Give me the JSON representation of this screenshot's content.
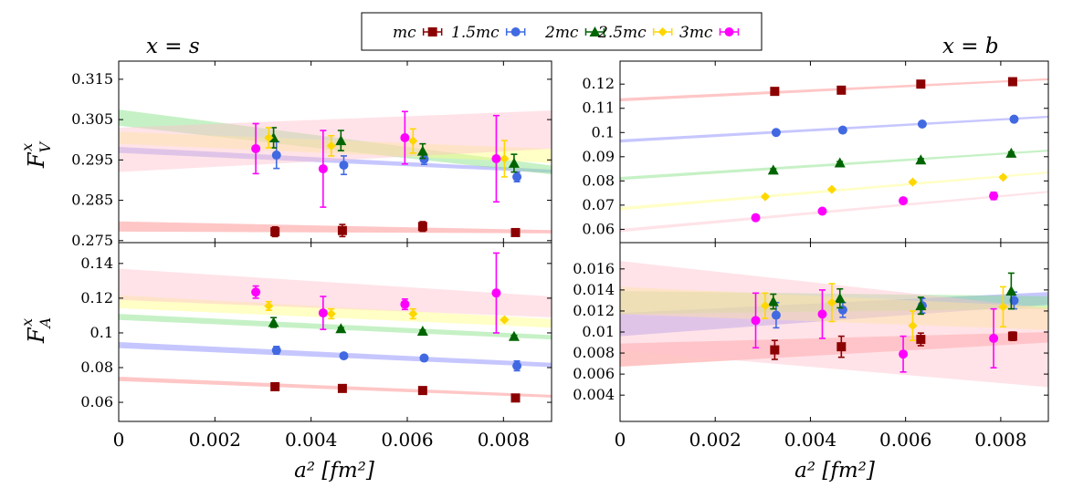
{
  "figure": {
    "x_axis_label": "a² [fm²]",
    "legend": {
      "items": [
        {
          "label": "m_c",
          "display": "mc",
          "color": "#8b0000",
          "marker": "square"
        },
        {
          "label": "1.5m_c",
          "display": "1.5mc",
          "color": "#4169e1",
          "marker": "circle"
        },
        {
          "label": "2m_c",
          "display": "2mc",
          "color": "#006400",
          "marker": "triangle"
        },
        {
          "label": "2.5m_c",
          "display": "2.5mc",
          "color": "#ffd700",
          "marker": "diamond"
        },
        {
          "label": "3m_c",
          "display": "3mc",
          "color": "#ff00ff",
          "marker": "circle"
        }
      ]
    },
    "column_titles": {
      "left": "x = s",
      "right": "x = b"
    },
    "row_labels": {
      "top": "F_V^x",
      "bottom": "F_A^x"
    }
  },
  "chart_data": [
    {
      "id": "FV_s",
      "type": "scatter",
      "title": "x = s",
      "ylabel": "F_V^x",
      "xlim": [
        0,
        0.009
      ],
      "ylim": [
        0.2745,
        0.3195
      ],
      "x_ticks": [],
      "x_tick_labels": [],
      "y_ticks": [
        0.275,
        0.285,
        0.295,
        0.305,
        0.315
      ],
      "y_tick_labels": [
        "0.275",
        "0.285",
        "0.295",
        "0.305",
        "0.315"
      ],
      "series": [
        {
          "name": "m_c",
          "x": [
            0.00325,
            0.00465,
            0.00632,
            0.00825
          ],
          "y": [
            0.2772,
            0.2775,
            0.2785,
            0.277
          ],
          "err": [
            0.0012,
            0.0015,
            0.0012,
            0.0004
          ],
          "band": {
            "y0": 0.2785,
            "y1": 0.2772,
            "w0": 0.0025,
            "w1": 0.0008
          }
        },
        {
          "name": "1.5m_c",
          "x": [
            0.00328,
            0.00468,
            0.00635,
            0.00828
          ],
          "y": [
            0.2962,
            0.2937,
            0.2952,
            0.2908
          ],
          "err": [
            0.0033,
            0.0023,
            0.0013,
            0.0012
          ],
          "band": {
            "y0": 0.2975,
            "y1": 0.2922,
            "w0": 0.0015,
            "w1": 0.0008
          }
        },
        {
          "name": "2m_c",
          "x": [
            0.00322,
            0.00462,
            0.00632,
            0.00822
          ],
          "y": [
            0.3005,
            0.2998,
            0.2972,
            0.2942
          ],
          "err": [
            0.0025,
            0.0025,
            0.0018,
            0.0022
          ],
          "band": {
            "y0": 0.3055,
            "y1": 0.2925,
            "w0": 0.004,
            "w1": 0.0022
          }
        },
        {
          "name": "2.5m_c",
          "x": [
            0.00312,
            0.00442,
            0.00612,
            0.00802
          ],
          "y": [
            0.3005,
            0.2985,
            0.2997,
            0.2953
          ],
          "err": [
            0.0025,
            0.0025,
            0.003,
            0.0045
          ],
          "band": {
            "y0": 0.3005,
            "y1": 0.296,
            "w0": 0.003,
            "w1": 0.0035
          }
        },
        {
          "name": "3m_c",
          "x": [
            0.00285,
            0.00425,
            0.00595,
            0.00785
          ],
          "y": [
            0.2978,
            0.2928,
            0.3005,
            0.2953
          ],
          "err": [
            0.0062,
            0.0095,
            0.0065,
            0.0107
          ],
          "band": {
            "y0": 0.2975,
            "y1": 0.3025,
            "w0": 0.011,
            "w1": 0.0095
          }
        }
      ]
    },
    {
      "id": "FV_b",
      "type": "scatter",
      "title": "x = b",
      "ylabel": "",
      "xlim": [
        0,
        0.009
      ],
      "ylim": [
        0.0545,
        0.1295
      ],
      "x_ticks": [],
      "x_tick_labels": [],
      "y_ticks": [
        0.06,
        0.07,
        0.08,
        0.09,
        0.1,
        0.11,
        0.12
      ],
      "y_tick_labels": [
        "0.06",
        "0.07",
        "0.08",
        "0.09",
        "0.1",
        "0.11",
        "0.12"
      ],
      "series": [
        {
          "name": "m_c",
          "x": [
            0.00325,
            0.00465,
            0.00632,
            0.00825
          ],
          "y": [
            0.117,
            0.1175,
            0.12,
            0.121
          ],
          "err": [
            0.0005,
            0.0005,
            0.0005,
            0.0005
          ],
          "band": {
            "y0": 0.1135,
            "y1": 0.122,
            "w0": 0.0013,
            "w1": 0.0008
          }
        },
        {
          "name": "1.5m_c",
          "x": [
            0.00328,
            0.00468,
            0.00635,
            0.00828
          ],
          "y": [
            0.1,
            0.101,
            0.1035,
            0.1055
          ],
          "err": [
            0.0005,
            0.0005,
            0.0005,
            0.0005
          ],
          "band": {
            "y0": 0.0965,
            "y1": 0.1065,
            "w0": 0.0013,
            "w1": 0.0008
          }
        },
        {
          "name": "2m_c",
          "x": [
            0.00322,
            0.00462,
            0.00632,
            0.00822
          ],
          "y": [
            0.0845,
            0.0875,
            0.0887,
            0.0915
          ],
          "err": [
            0.0005,
            0.0005,
            0.0005,
            0.0005
          ],
          "band": {
            "y0": 0.081,
            "y1": 0.0925,
            "w0": 0.0013,
            "w1": 0.0008
          }
        },
        {
          "name": "2.5m_c",
          "x": [
            0.00305,
            0.00445,
            0.00615,
            0.00805
          ],
          "y": [
            0.0735,
            0.0765,
            0.0795,
            0.0815
          ],
          "err": [
            0.0005,
            0.0005,
            0.0005,
            0.0005
          ],
          "band": {
            "y0": 0.0685,
            "y1": 0.0835,
            "w0": 0.0013,
            "w1": 0.0008
          }
        },
        {
          "name": "3m_c",
          "x": [
            0.00285,
            0.00425,
            0.00595,
            0.00785
          ],
          "y": [
            0.0648,
            0.0675,
            0.0718,
            0.0738
          ],
          "err": [
            0.0005,
            0.0005,
            0.0005,
            0.0015
          ],
          "band": {
            "y0": 0.0595,
            "y1": 0.0755,
            "w0": 0.0013,
            "w1": 0.0008
          }
        }
      ]
    },
    {
      "id": "FA_s",
      "type": "scatter",
      "title": "",
      "ylabel": "F_A^x",
      "xlim": [
        0,
        0.009
      ],
      "ylim": [
        0.049,
        0.152
      ],
      "x_ticks": [
        0,
        0.002,
        0.004,
        0.006,
        0.008
      ],
      "x_tick_labels": [
        "0",
        "0.002",
        "0.004",
        "0.006",
        "0.008"
      ],
      "y_ticks": [
        0.06,
        0.08,
        0.1,
        0.12,
        0.14
      ],
      "y_tick_labels": [
        "0.06",
        "0.08",
        "0.1",
        "0.12",
        "0.14"
      ],
      "series": [
        {
          "name": "m_c",
          "x": [
            0.00325,
            0.00465,
            0.00632,
            0.00825
          ],
          "y": [
            0.069,
            0.068,
            0.0668,
            0.0625
          ],
          "err": [
            0.0006,
            0.0006,
            0.0006,
            0.0006
          ],
          "band": {
            "y0": 0.0735,
            "y1": 0.0635,
            "w0": 0.0025,
            "w1": 0.0016
          }
        },
        {
          "name": "1.5m_c",
          "x": [
            0.00328,
            0.00468,
            0.00635,
            0.00828
          ],
          "y": [
            0.09,
            0.0868,
            0.0855,
            0.081
          ],
          "err": [
            0.0022,
            0.0006,
            0.0006,
            0.0028
          ],
          "band": {
            "y0": 0.093,
            "y1": 0.0815,
            "w0": 0.0035,
            "w1": 0.0025
          }
        },
        {
          "name": "2m_c",
          "x": [
            0.00322,
            0.00462,
            0.00632,
            0.00822
          ],
          "y": [
            0.106,
            0.1025,
            0.101,
            0.098
          ],
          "err": [
            0.0028,
            0.0006,
            0.0006,
            0.0006
          ],
          "band": {
            "y0": 0.1092,
            "y1": 0.0975,
            "w0": 0.0035,
            "w1": 0.0025
          }
        },
        {
          "name": "2.5m_c",
          "x": [
            0.00312,
            0.00442,
            0.00612,
            0.00802
          ],
          "y": [
            0.1155,
            0.111,
            0.111,
            0.1075
          ],
          "err": [
            0.0025,
            0.0028,
            0.0028,
            0.0006
          ],
          "band": {
            "y0": 0.118,
            "y1": 0.1055,
            "w0": 0.0075,
            "w1": 0.005
          }
        },
        {
          "name": "3m_c",
          "x": [
            0.00285,
            0.00425,
            0.00595,
            0.00785
          ],
          "y": [
            0.1235,
            0.1115,
            0.1165,
            0.123
          ],
          "err": [
            0.0035,
            0.0095,
            0.003,
            0.023
          ],
          "band": {
            "y0": 0.128,
            "y1": 0.115,
            "w0": 0.018,
            "w1": 0.012
          }
        }
      ]
    },
    {
      "id": "FA_b",
      "type": "scatter",
      "title": "",
      "ylabel": "",
      "xlim": [
        0,
        0.009
      ],
      "ylim": [
        0.0015,
        0.0185
      ],
      "x_ticks": [
        0,
        0.002,
        0.004,
        0.006,
        0.008
      ],
      "x_tick_labels": [
        "0",
        "0.002",
        "0.004",
        "0.006",
        "0.008"
      ],
      "y_ticks": [
        0.004,
        0.006,
        0.008,
        0.01,
        0.012,
        0.014,
        0.016
      ],
      "y_tick_labels": [
        "0.004",
        "0.006",
        "0.008",
        "0.01",
        "0.012",
        "0.014",
        "0.016"
      ],
      "series": [
        {
          "name": "m_c",
          "x": [
            0.00325,
            0.00465,
            0.00632,
            0.00825
          ],
          "y": [
            0.0083,
            0.0086,
            0.0093,
            0.0096
          ],
          "err": [
            0.0009,
            0.001,
            0.0006,
            0.0004
          ],
          "band": {
            "y0": 0.0078,
            "y1": 0.0095,
            "w0": 0.0022,
            "w1": 0.001
          }
        },
        {
          "name": "1.5m_c",
          "x": [
            0.00328,
            0.00468,
            0.00635,
            0.00828
          ],
          "y": [
            0.0116,
            0.0121,
            0.0125,
            0.013
          ],
          "err": [
            0.0012,
            0.0007,
            0.0007,
            0.0008
          ],
          "band": {
            "y0": 0.0107,
            "y1": 0.0132,
            "w0": 0.0022,
            "w1": 0.0012
          }
        },
        {
          "name": "2m_c",
          "x": [
            0.00322,
            0.00462,
            0.00632,
            0.00822
          ],
          "y": [
            0.0129,
            0.0132,
            0.0125,
            0.0139
          ],
          "err": [
            0.0007,
            0.0009,
            0.0008,
            0.0017
          ],
          "band": {
            "y0": 0.0128,
            "y1": 0.0128,
            "w0": 0.0022,
            "w1": 0.0012
          }
        },
        {
          "name": "2.5m_c",
          "x": [
            0.00305,
            0.00445,
            0.00615,
            0.00805
          ],
          "y": [
            0.0125,
            0.0128,
            0.0106,
            0.0124
          ],
          "err": [
            0.0012,
            0.0018,
            0.0014,
            0.0019
          ],
          "band": {
            "y0": 0.013,
            "y1": 0.0113,
            "w0": 0.0026,
            "w1": 0.0022
          }
        },
        {
          "name": "3m_c",
          "x": [
            0.00285,
            0.00425,
            0.00595,
            0.00785
          ],
          "y": [
            0.0111,
            0.0117,
            0.0079,
            0.0094
          ],
          "err": [
            0.0026,
            0.0023,
            0.0017,
            0.0028
          ],
          "band": {
            "y0": 0.0125,
            "y1": 0.0085,
            "w0": 0.0085,
            "w1": 0.0075
          }
        }
      ]
    }
  ]
}
